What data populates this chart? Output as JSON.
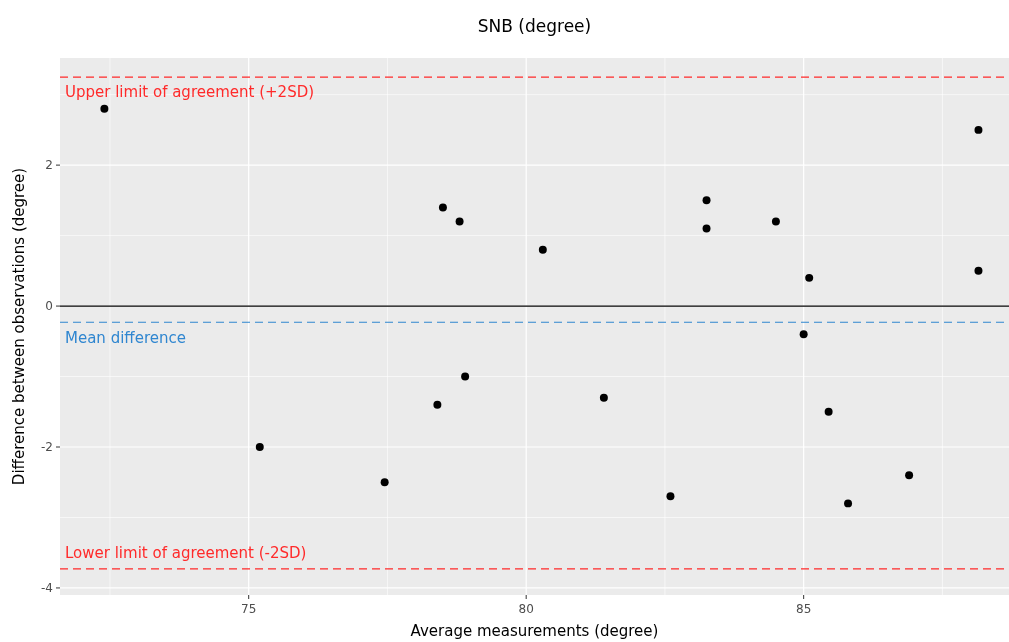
{
  "chart_data": {
    "type": "scatter",
    "title": "SNB (degree)",
    "xlabel": "Average measurements (degree)",
    "ylabel": "Difference between observations (degree)",
    "x": [
      72.4,
      78.5,
      78.8,
      80.3,
      83.25,
      83.25,
      84.5,
      85.1,
      88.15,
      88.15,
      85.0,
      85.45,
      86.9,
      85.8,
      82.6,
      81.4,
      78.9,
      78.4,
      75.2,
      77.45
    ],
    "values": [
      2.8,
      1.4,
      1.2,
      0.8,
      1.5,
      1.1,
      1.2,
      0.4,
      2.5,
      0.5,
      -0.4,
      -1.5,
      -2.4,
      -2.8,
      -2.7,
      -1.3,
      -1.0,
      -1.4,
      -2.0,
      -2.5
    ],
    "color": "#000000",
    "marker": "circle",
    "xlim": [
      71.6,
      88.7
    ],
    "xticks": [
      75,
      80,
      85
    ],
    "ylim": [
      -4.1,
      3.52
    ],
    "yticks": [
      -4,
      -2,
      0,
      2
    ],
    "grid": true,
    "ref_lines": [
      {
        "axis": "y",
        "value": 3.25,
        "label": "Upper limit of agreement (+2SD)",
        "color": "#ff2a2a",
        "line_style": "dashed"
      },
      {
        "axis": "y",
        "value": 0,
        "label": null,
        "color": "#000000",
        "line_style": "solid"
      },
      {
        "axis": "y",
        "value": -0.23,
        "label": "Mean difference",
        "color": "#2f86d0",
        "line_style": "dashed"
      },
      {
        "axis": "y",
        "value": -3.73,
        "label": "Lower limit of agreement (-2SD)",
        "color": "#ff2a2a",
        "line_style": "dashed"
      }
    ]
  }
}
